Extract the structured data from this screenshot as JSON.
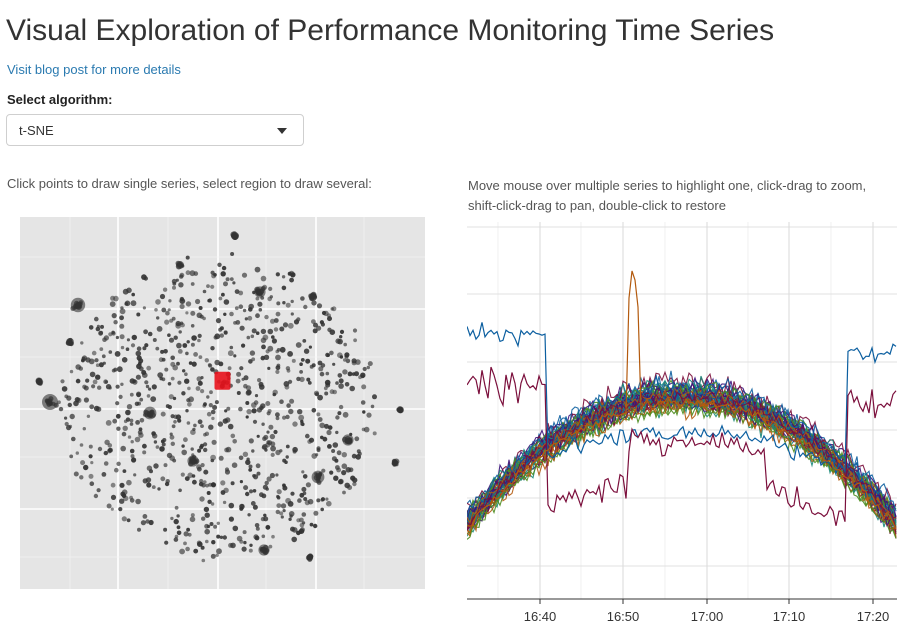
{
  "page": {
    "title": "Visual Exploration of Performance Monitoring Time Series",
    "blog_link": "Visit blog post for more details"
  },
  "controls": {
    "algorithm_label": "Select algorithm:",
    "algorithm_selected": "t-SNE",
    "dropdown_icon": "caret-down-icon"
  },
  "left_panel": {
    "help_text": "Click points to draw single series, select region to draw several:"
  },
  "right_panel": {
    "help_text": "Move mouse over multiple series to highlight one, click-drag to zoom, shift-click-drag to pan, double-click to restore"
  },
  "colors": {
    "scatter_bg": "#e5e5e5",
    "point": "#333333",
    "selected_point": "#e8111b",
    "series_palette": [
      "#0c5fa0",
      "#7b0f3c",
      "#1b8a7a",
      "#4d8c1e",
      "#3c137c",
      "#b35a0e"
    ]
  },
  "chart_data": [
    {
      "type": "scatter",
      "title": "",
      "xlabel": "",
      "ylabel": "",
      "grid": true,
      "tick_labels_shown": false,
      "selected_point": {
        "x": 0.5,
        "y": 0.56
      }
    },
    {
      "type": "line",
      "title": "",
      "xlabel": "",
      "ylabel": "",
      "grid": true,
      "x_ticks": [
        "16:40",
        "16:50",
        "17:00",
        "17:10",
        "17:20"
      ],
      "xlim": [
        "16:31",
        "17:20"
      ],
      "series_count": "many",
      "notes": "Dense bundle of overlapping series forming an arch shape; one series has a sharp spike near 16:50"
    }
  ]
}
